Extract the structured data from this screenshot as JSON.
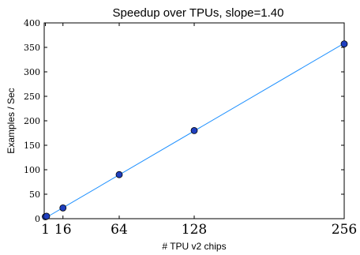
{
  "chart_data": {
    "type": "line",
    "title": "Speedup over TPUs, slope=1.40",
    "xlabel": "# TPU v2 chips",
    "ylabel": "Examples / Sec",
    "xlim": [
      0,
      256
    ],
    "ylim": [
      0,
      400
    ],
    "xticks": [
      1,
      16,
      64,
      128,
      256
    ],
    "xtick_labels": [
      "1",
      "16",
      "64",
      "128",
      "256"
    ],
    "yticks": [
      0,
      50,
      100,
      150,
      200,
      250,
      300,
      350,
      400
    ],
    "ytick_labels": [
      "0",
      "50",
      "100",
      "150",
      "200",
      "250",
      "300",
      "350",
      "400"
    ],
    "grid": false,
    "series": [
      {
        "x": [
          1,
          2,
          16,
          64,
          128,
          256
        ],
        "y": [
          4,
          5,
          22,
          90,
          180,
          357
        ],
        "marker_color": "#1f3fbf",
        "line_color": "#1e90ff"
      }
    ],
    "fit_line": {
      "slope": 1.4,
      "x": [
        0,
        256
      ],
      "color": "#1e90ff"
    }
  }
}
